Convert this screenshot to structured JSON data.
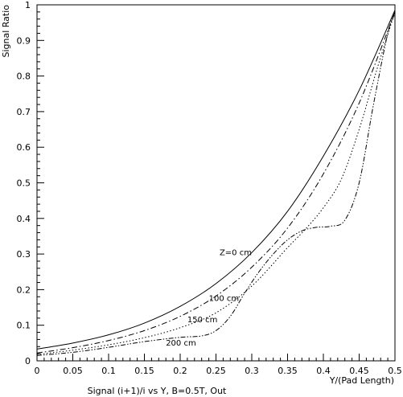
{
  "chart_data": {
    "type": "line",
    "title": "",
    "xlabel": "Y/(Pad Length)",
    "ylabel": "Signal Ratio",
    "caption": "Signal (i+1)/i vs Y, B=0.5T, Out",
    "xlim": [
      0,
      0.5
    ],
    "ylim": [
      0,
      1
    ],
    "grid": false,
    "x_ticks": [
      {
        "v": 0,
        "label": "0"
      },
      {
        "v": 0.05,
        "label": "0.05"
      },
      {
        "v": 0.1,
        "label": "0.1"
      },
      {
        "v": 0.15,
        "label": "0.15"
      },
      {
        "v": 0.2,
        "label": "0.2"
      },
      {
        "v": 0.25,
        "label": "0.25"
      },
      {
        "v": 0.3,
        "label": "0.3"
      },
      {
        "v": 0.35,
        "label": "0.35"
      },
      {
        "v": 0.4,
        "label": "0.4"
      },
      {
        "v": 0.45,
        "label": "0.45"
      },
      {
        "v": 0.5,
        "label": "0.5"
      }
    ],
    "y_ticks": [
      {
        "v": 0,
        "label": "0"
      },
      {
        "v": 0.1,
        "label": "0.1"
      },
      {
        "v": 0.2,
        "label": "0.2"
      },
      {
        "v": 0.3,
        "label": "0.3"
      },
      {
        "v": 0.4,
        "label": "0.4"
      },
      {
        "v": 0.5,
        "label": "0.5"
      },
      {
        "v": 0.6,
        "label": "0.6"
      },
      {
        "v": 0.7,
        "label": "0.7"
      },
      {
        "v": 0.8,
        "label": "0.8"
      },
      {
        "v": 0.9,
        "label": "0.9"
      },
      {
        "v": 1,
        "label": "1"
      }
    ],
    "series": [
      {
        "label": "Z=0 cm",
        "dash": "solid",
        "label_at": [
          0.255,
          0.297
        ],
        "x": [
          0,
          0.05,
          0.1,
          0.15,
          0.2,
          0.25,
          0.3,
          0.35,
          0.4,
          0.45,
          0.5
        ],
        "y": [
          0.033,
          0.05,
          0.073,
          0.106,
          0.153,
          0.217,
          0.304,
          0.42,
          0.575,
          0.76,
          0.985
        ]
      },
      {
        "label": "100 cm",
        "dash": "dashdot",
        "label_at": [
          0.24,
          0.168
        ],
        "x": [
          0,
          0.05,
          0.1,
          0.15,
          0.2,
          0.25,
          0.3,
          0.35,
          0.4,
          0.45,
          0.5
        ],
        "y": [
          0.022,
          0.037,
          0.057,
          0.085,
          0.125,
          0.182,
          0.263,
          0.373,
          0.525,
          0.724,
          0.98
        ]
      },
      {
        "label": "150 cm",
        "dash": "dotted",
        "label_at": [
          0.21,
          0.108
        ],
        "x": [
          0,
          0.05,
          0.1,
          0.15,
          0.2,
          0.25,
          0.3,
          0.35,
          0.375,
          0.4,
          0.425,
          0.45,
          0.475,
          0.5
        ],
        "y": [
          0.018,
          0.03,
          0.045,
          0.065,
          0.093,
          0.135,
          0.21,
          0.318,
          0.37,
          0.43,
          0.51,
          0.65,
          0.82,
          0.98
        ]
      },
      {
        "label": "200 cm",
        "dash": "dashdotdot",
        "label_at": [
          0.18,
          0.043
        ],
        "x": [
          0,
          0.05,
          0.1,
          0.15,
          0.2,
          0.23,
          0.25,
          0.27,
          0.29,
          0.31,
          0.33,
          0.35,
          0.37,
          0.39,
          0.41,
          0.43,
          0.45,
          0.47,
          0.49,
          0.5
        ],
        "y": [
          0.015,
          0.024,
          0.038,
          0.054,
          0.066,
          0.07,
          0.085,
          0.125,
          0.19,
          0.25,
          0.3,
          0.34,
          0.365,
          0.375,
          0.378,
          0.395,
          0.5,
          0.72,
          0.92,
          0.975
        ]
      }
    ]
  }
}
